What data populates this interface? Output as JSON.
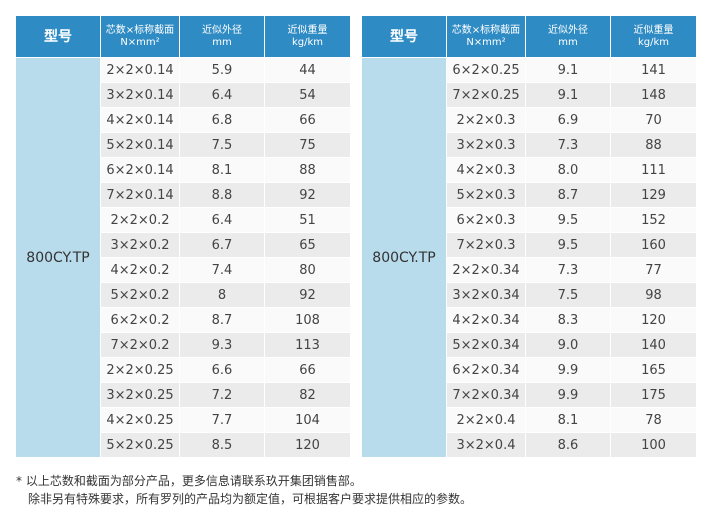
{
  "tables": [
    {
      "headers": [
        [
          "型号"
        ],
        [
          "芯数×标称截面",
          "N×mm²"
        ],
        [
          "近似外径",
          "mm"
        ],
        [
          "近似重量",
          "kg/km"
        ]
      ],
      "model": "800CY.TP",
      "rows": [
        [
          "2×2×0.14",
          "5.9",
          "44"
        ],
        [
          "3×2×0.14",
          "6.4",
          "54"
        ],
        [
          "4×2×0.14",
          "6.8",
          "66"
        ],
        [
          "5×2×0.14",
          "7.5",
          "75"
        ],
        [
          "6×2×0.14",
          "8.1",
          "88"
        ],
        [
          "7×2×0.14",
          "8.8",
          "92"
        ],
        [
          "2×2×0.2",
          "6.4",
          "51"
        ],
        [
          "3×2×0.2",
          "6.7",
          "65"
        ],
        [
          "4×2×0.2",
          "7.4",
          "80"
        ],
        [
          "5×2×0.2",
          "8",
          "92"
        ],
        [
          "6×2×0.2",
          "8.7",
          "108"
        ],
        [
          "7×2×0.2",
          "9.3",
          "113"
        ],
        [
          "2×2×0.25",
          "6.6",
          "66"
        ],
        [
          "3×2×0.25",
          "7.2",
          "82"
        ],
        [
          "4×2×0.25",
          "7.7",
          "104"
        ],
        [
          "5×2×0.25",
          "8.5",
          "120"
        ]
      ]
    },
    {
      "headers": [
        [
          "型号"
        ],
        [
          "芯数×标称截面",
          "N×mm²"
        ],
        [
          "近似外径",
          "mm"
        ],
        [
          "近似重量",
          "kg/km"
        ]
      ],
      "model": "800CY.TP",
      "rows": [
        [
          "6×2×0.25",
          "9.1",
          "141"
        ],
        [
          "7×2×0.25",
          "9.1",
          "148"
        ],
        [
          "2×2×0.3",
          "6.9",
          "70"
        ],
        [
          "3×2×0.3",
          "7.3",
          "88"
        ],
        [
          "4×2×0.3",
          "8.0",
          "111"
        ],
        [
          "5×2×0.3",
          "8.7",
          "129"
        ],
        [
          "6×2×0.3",
          "9.5",
          "152"
        ],
        [
          "7×2×0.3",
          "9.5",
          "160"
        ],
        [
          "2×2×0.34",
          "7.3",
          "77"
        ],
        [
          "3×2×0.34",
          "7.5",
          "98"
        ],
        [
          "4×2×0.34",
          "8.3",
          "120"
        ],
        [
          "5×2×0.34",
          "9.0",
          "140"
        ],
        [
          "6×2×0.34",
          "9.9",
          "165"
        ],
        [
          "7×2×0.34",
          "9.9",
          "175"
        ],
        [
          "2×2×0.4",
          "8.1",
          "78"
        ],
        [
          "3×2×0.4",
          "8.6",
          "100"
        ]
      ]
    }
  ],
  "footnote": [
    "* 以上芯数和截面为部分产品，更多信息请联系玖开集团销售部。",
    "除非另有特殊要求，所有罗列的产品均为额定值，可根据客户要求提供相应的参数。"
  ]
}
